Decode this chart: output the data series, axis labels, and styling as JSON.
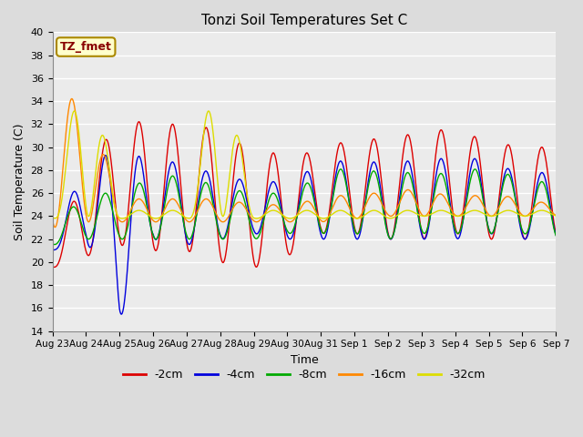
{
  "title": "Tonzi Soil Temperatures Set C",
  "xlabel": "Time",
  "ylabel": "Soil Temperature (C)",
  "ylim": [
    14,
    40
  ],
  "yticks": [
    14,
    16,
    18,
    20,
    22,
    24,
    26,
    28,
    30,
    32,
    34,
    36,
    38,
    40
  ],
  "bg_color": "#dcdcdc",
  "plot_bg_color": "#ebebeb",
  "grid_color": "#ffffff",
  "annotation_text": "TZ_fmet",
  "annotation_color": "#880000",
  "annotation_bg": "#ffffcc",
  "annotation_border": "#aa8800",
  "legend_entries": [
    "-2cm",
    "-4cm",
    "-8cm",
    "-16cm",
    "-32cm"
  ],
  "line_colors": [
    "#dd0000",
    "#0000dd",
    "#00aa00",
    "#ff8800",
    "#dddd00"
  ],
  "n_days": 16,
  "day_labels": [
    "Aug 23",
    "Aug 24",
    "Aug 25",
    "Aug 26",
    "Aug 27",
    "Aug 28",
    "Aug 29",
    "Aug 30",
    "Aug 31",
    "Sep 1",
    "Sep 2",
    "Sep 3",
    "Sep 4",
    "Sep 5",
    "Sep 6",
    "Sep 7"
  ],
  "pts_per_day": 8
}
